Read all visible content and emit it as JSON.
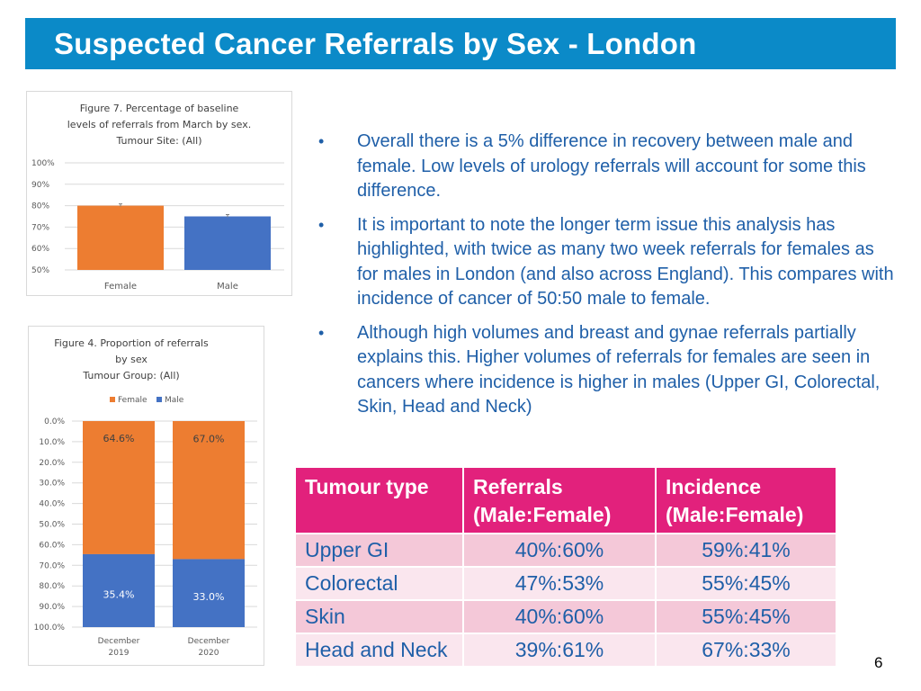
{
  "title": "Suspected Cancer Referrals by Sex - London",
  "page_number": "6",
  "colors": {
    "title_bg": "#0b8ac8",
    "female": "#ed7d31",
    "male": "#4472c4",
    "table_header": "#e2217c",
    "text_blue": "#1f5fa8"
  },
  "bullets": [
    "Overall there is a 5% difference in recovery between male and female.  Low levels of urology referrals will account for some this difference.",
    "It is important to note the longer term issue this analysis has highlighted, with twice as many two week referrals for females as for males in London (and also across England). This compares with incidence of cancer of 50:50 male to female.",
    "Although high volumes and breast and gynae referrals partially explains this.  Higher volumes of referrals for females are seen in cancers where incidence is higher in males (Upper GI, Colorectal, Skin, Head and Neck)"
  ],
  "table": {
    "headers": [
      "Tumour type",
      "Referrals (Male:Female)",
      "Incidence (Male:Female)"
    ],
    "rows": [
      [
        "Upper GI",
        "40%:60%",
        "59%:41%"
      ],
      [
        "Colorectal",
        "47%:53%",
        "55%:45%"
      ],
      [
        "Skin",
        "40%:60%",
        "55%:45%"
      ],
      [
        "Head and Neck",
        "39%:61%",
        "67%:33%"
      ]
    ]
  },
  "chart_data": [
    {
      "id": "fig7",
      "type": "bar",
      "title": [
        "Figure 7. Percentage of baseline",
        "levels of referrals from March by sex.",
        "Tumour Site:  (All)"
      ],
      "categories": [
        "Female",
        "Male"
      ],
      "values": [
        80,
        75
      ],
      "colors": [
        "#ed7d31",
        "#4472c4"
      ],
      "error_bars": true,
      "ylim": [
        50,
        100
      ],
      "ytick_labels": [
        "100%",
        "90%",
        "80%",
        "70%",
        "60%",
        "50%"
      ],
      "ytick_values": [
        100,
        90,
        80,
        70,
        60,
        50
      ],
      "grid": true
    },
    {
      "id": "fig4",
      "type": "bar",
      "stacked": true,
      "title": [
        "Figure 4. Proportion of referrals",
        "by sex",
        "Tumour Group: (All)"
      ],
      "categories": [
        "December 2019",
        "December 2020"
      ],
      "category_lines": [
        [
          "December",
          "2019"
        ],
        [
          "December",
          "2020"
        ]
      ],
      "legend": [
        "Female",
        "Male"
      ],
      "legend_position": "top",
      "y_inverted": true,
      "ylim": [
        0,
        100
      ],
      "ytick_labels": [
        "0.0%",
        "10.0%",
        "20.0%",
        "30.0%",
        "40.0%",
        "50.0%",
        "60.0%",
        "70.0%",
        "80.0%",
        "90.0%",
        "100.0%"
      ],
      "ytick_values": [
        0,
        10,
        20,
        30,
        40,
        50,
        60,
        70,
        80,
        90,
        100
      ],
      "series": [
        {
          "name": "Female",
          "color": "#ed7d31",
          "values": [
            64.6,
            67.0
          ],
          "labels": [
            "64.6%",
            "67.0%"
          ]
        },
        {
          "name": "Male",
          "color": "#4472c4",
          "values": [
            35.4,
            33.0
          ],
          "labels": [
            "35.4%",
            "33.0%"
          ]
        }
      ]
    }
  ]
}
